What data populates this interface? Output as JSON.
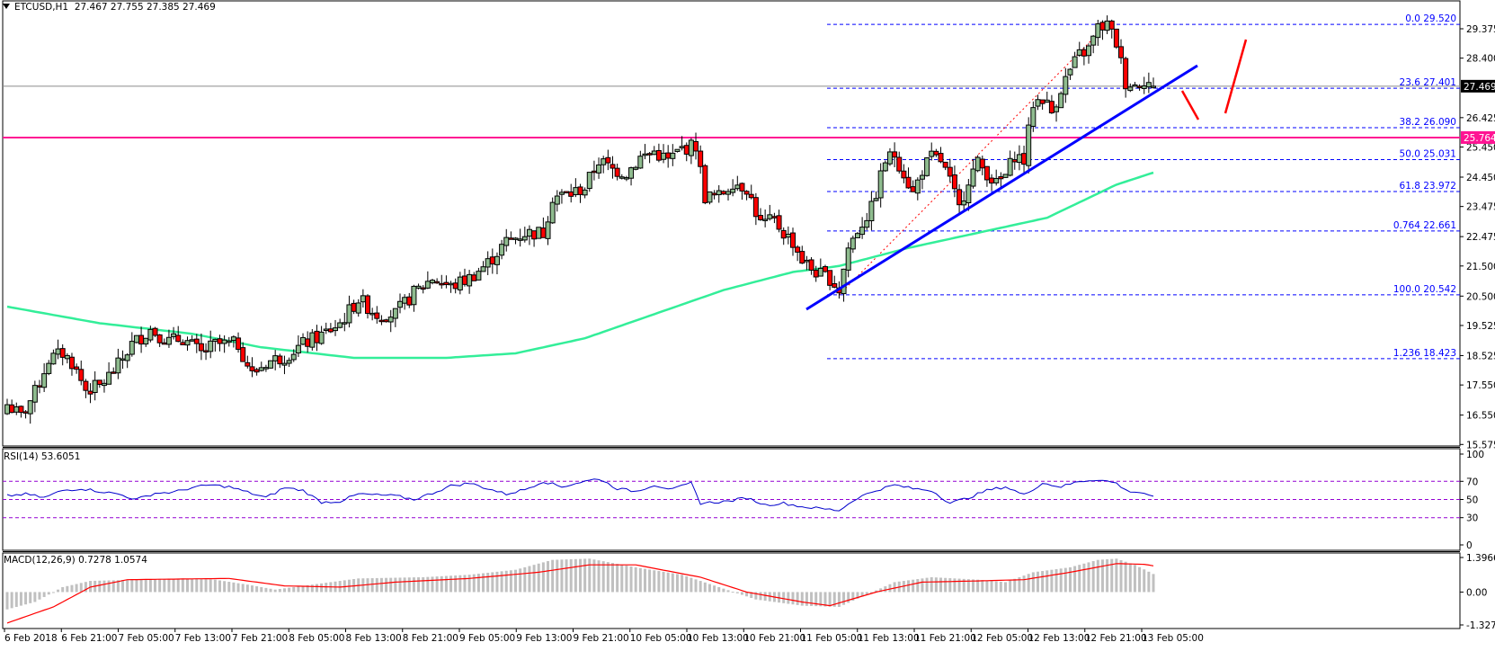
{
  "header": {
    "symbol": "ETCUSD,H1",
    "ohlc": "27.467 27.755 27.385 27.469"
  },
  "rsi": {
    "label": "RSI(14) 53.6051",
    "levels": [
      "100",
      "70",
      "50",
      "30",
      "0"
    ]
  },
  "macd": {
    "label": "MACD(12,26,9) 0.7278 1.0574",
    "levels": [
      "1.3966",
      "0.00",
      "-1.3275"
    ]
  },
  "price_axis": {
    "ticks": [
      "29.375",
      "28.400",
      "26.425",
      "25.450",
      "24.450",
      "23.475",
      "22.475",
      "21.500",
      "20.500",
      "19.525",
      "18.525",
      "17.550",
      "16.550",
      "15.575"
    ],
    "current_price": "27.469",
    "resistance_price": "25.764"
  },
  "fibonacci": [
    {
      "level": "0.0",
      "price": "29.520"
    },
    {
      "level": "23.6",
      "price": "27.401"
    },
    {
      "level": "38.2",
      "price": "26.090"
    },
    {
      "level": "50.0",
      "price": "25.031"
    },
    {
      "level": "61.8",
      "price": "23.972"
    },
    {
      "level": "0.764",
      "price": "22.661"
    },
    {
      "level": "100.0",
      "price": "20.542"
    },
    {
      "level": "1.236",
      "price": "18.423"
    }
  ],
  "time_axis": [
    "6 Feb 2018",
    "6 Feb 21:00",
    "7 Feb 05:00",
    "7 Feb 13:00",
    "7 Feb 21:00",
    "8 Feb 05:00",
    "8 Feb 13:00",
    "8 Feb 21:00",
    "9 Feb 05:00",
    "9 Feb 13:00",
    "9 Feb 21:00",
    "10 Feb 05:00",
    "10 Feb 13:00",
    "10 Feb 21:00",
    "11 Feb 05:00",
    "11 Feb 13:00",
    "11 Feb 21:00",
    "12 Feb 05:00",
    "12 Feb 13:00",
    "12 Feb 21:00",
    "13 Feb 05:00"
  ],
  "colors": {
    "bull": "#8fbc8f",
    "bear": "#ff0000",
    "ma": "#33ee99",
    "trendline": "#0000ff",
    "resistance": "#ff1493",
    "fib": "#0000ff",
    "rsi_line": "#0000cc",
    "rsi_levels": "#9400d3",
    "macd_hist": "#c0c0c0",
    "macd_signal": "#ff0000"
  },
  "chart_data": {
    "type": "candlestick",
    "title": "ETCUSD,H1",
    "ylim": [
      15.575,
      29.9
    ],
    "anchors_close": [
      [
        0,
        16.9
      ],
      [
        3,
        16.5
      ],
      [
        6,
        17.3
      ],
      [
        9,
        18.4
      ],
      [
        12,
        18.6
      ],
      [
        14,
        18.3
      ],
      [
        17,
        17.4
      ],
      [
        20,
        17.5
      ],
      [
        24,
        18.2
      ],
      [
        27,
        18.9
      ],
      [
        31,
        19.4
      ],
      [
        35,
        19.0
      ],
      [
        38,
        19.1
      ],
      [
        42,
        18.6
      ],
      [
        45,
        18.9
      ],
      [
        50,
        18.9
      ],
      [
        53,
        17.9
      ],
      [
        56,
        18.3
      ],
      [
        60,
        18.5
      ],
      [
        64,
        18.9
      ],
      [
        68,
        19.2
      ],
      [
        72,
        19.6
      ],
      [
        76,
        20.4
      ],
      [
        80,
        19.9
      ],
      [
        84,
        19.9
      ],
      [
        88,
        20.6
      ],
      [
        92,
        21.1
      ],
      [
        96,
        20.8
      ],
      [
        100,
        21.1
      ],
      [
        104,
        21.6
      ],
      [
        108,
        22.3
      ],
      [
        112,
        22.6
      ],
      [
        116,
        22.6
      ],
      [
        118,
        23.8
      ],
      [
        122,
        23.9
      ],
      [
        125,
        24.1
      ],
      [
        128,
        25.0
      ],
      [
        131,
        24.7
      ],
      [
        134,
        24.6
      ],
      [
        137,
        25.1
      ],
      [
        140,
        25.3
      ],
      [
        143,
        25.0
      ],
      [
        146,
        25.4
      ],
      [
        149,
        25.5
      ],
      [
        151,
        23.8
      ],
      [
        154,
        23.8
      ],
      [
        157,
        24.3
      ],
      [
        160,
        24.1
      ],
      [
        163,
        22.9
      ],
      [
        166,
        23.0
      ],
      [
        168,
        22.6
      ],
      [
        170,
        22.3
      ],
      [
        172,
        21.7
      ],
      [
        174,
        21.4
      ],
      [
        176,
        21.2
      ],
      [
        178,
        21.1
      ],
      [
        180,
        20.7
      ],
      [
        182,
        22.1
      ],
      [
        184,
        22.7
      ],
      [
        187,
        23.4
      ],
      [
        190,
        25.0
      ],
      [
        192,
        25.2
      ],
      [
        194,
        24.6
      ],
      [
        196,
        23.9
      ],
      [
        198,
        24.7
      ],
      [
        200,
        25.1
      ],
      [
        202,
        25.0
      ],
      [
        204,
        24.3
      ],
      [
        206,
        23.4
      ],
      [
        208,
        24.4
      ],
      [
        210,
        24.9
      ],
      [
        212,
        24.6
      ],
      [
        214,
        24.2
      ],
      [
        216,
        24.5
      ],
      [
        218,
        25.2
      ],
      [
        220,
        25.0
      ],
      [
        222,
        26.9
      ],
      [
        224,
        27.1
      ],
      [
        226,
        26.6
      ],
      [
        228,
        27.4
      ],
      [
        230,
        28.0
      ],
      [
        232,
        28.5
      ],
      [
        234,
        28.7
      ],
      [
        236,
        29.4
      ],
      [
        238,
        29.5
      ],
      [
        240,
        28.9
      ],
      [
        242,
        27.6
      ],
      [
        244,
        27.5
      ],
      [
        246,
        27.7
      ],
      [
        248,
        27.469
      ]
    ],
    "ma_period_note": "moving average line shown in green",
    "fib_levels": [
      0.0,
      23.6,
      38.2,
      50.0,
      61.8,
      76.4,
      100.0,
      123.6
    ],
    "fib_prices": [
      29.52,
      27.401,
      26.09,
      25.031,
      23.972,
      22.661,
      20.542,
      18.423
    ],
    "horizontal_lines": [
      {
        "price": 25.764,
        "color": "#ff1493"
      },
      {
        "price": 27.469,
        "color": "#808080"
      }
    ],
    "rsi": {
      "period": 14,
      "last": 53.6051,
      "levels": [
        30,
        50,
        70
      ]
    },
    "macd": {
      "fast": 12,
      "slow": 26,
      "signal": 9,
      "main": 0.7278,
      "signal_value": 1.0574,
      "ylim": [
        -1.3275,
        1.3966
      ]
    }
  }
}
